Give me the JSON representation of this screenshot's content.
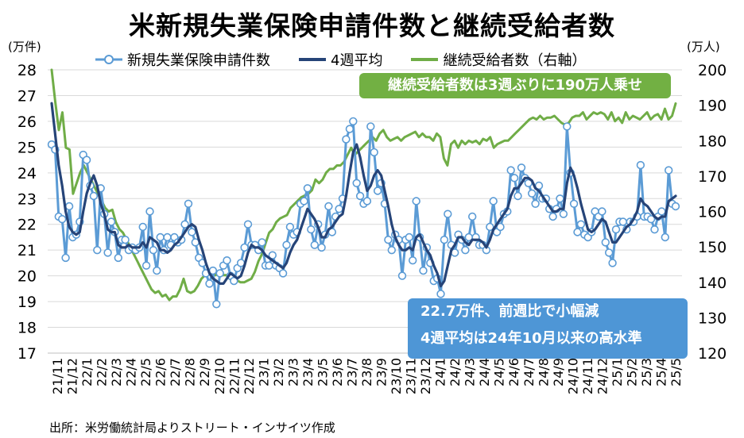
{
  "title": "米新規失業保険申請件数と継続受給者数",
  "left_unit": "(万件)",
  "right_unit": "(万人)",
  "source": "出所：米労働統計局よりストリート・インサイツ作成",
  "callouts": {
    "green": "継続受給者数は3週ぶりに190万人乗せ",
    "blue_line1": "22.7万件、前週比で小幅減",
    "blue_line2": "4週平均は24年10月以来の高水準"
  },
  "colors": {
    "weekly": "#5b9bd5",
    "avg4": "#264478",
    "continuing": "#70ad47",
    "callout_green": "#72b043",
    "callout_blue": "#4e96d6"
  },
  "chart_data": {
    "type": "line",
    "title": "米新規失業保険申請件数と継続受給者数",
    "x_tick_labels": [
      "21/11",
      "21/12",
      "22/1",
      "22/2",
      "22/3",
      "22/4",
      "22/5",
      "22/6",
      "22/7",
      "22/8",
      "22/9",
      "22/10",
      "22/11",
      "22/12",
      "23/1",
      "23/2",
      "23/3",
      "23/4",
      "23/5",
      "23/6",
      "23/7",
      "23/8",
      "23/9",
      "23/10",
      "23/11",
      "23/12",
      "24/1",
      "24/2",
      "24/3",
      "24/4",
      "24/5",
      "24/6",
      "24/7",
      "24/8",
      "24/9",
      "24/10",
      "24/11",
      "24/12",
      "25/1",
      "25/2",
      "25/3",
      "25/4",
      "25/5"
    ],
    "y_left": {
      "label": "(万件)",
      "range": [
        17,
        28
      ],
      "ticks": [
        17,
        18,
        19,
        20,
        21,
        22,
        23,
        24,
        25,
        26,
        27,
        28
      ]
    },
    "y_right": {
      "label": "(万人)",
      "range": [
        120,
        200
      ],
      "ticks": [
        120,
        130,
        140,
        150,
        160,
        170,
        180,
        190,
        200
      ]
    },
    "grid": true,
    "legend_position": "top",
    "series": [
      {
        "name": "新規失業保険申請件数",
        "axis": "left",
        "style": "line-markers",
        "values": [
          25.1,
          24.9,
          22.3,
          22.2,
          20.7,
          22.7,
          21.5,
          21.6,
          22.1,
          24.7,
          24.5,
          23.5,
          23.1,
          21.0,
          23.4,
          22.4,
          20.9,
          22.1,
          21.7,
          20.7,
          21.4,
          21.4,
          21.0,
          21.1,
          21.0,
          21.1,
          21.9,
          20.4,
          22.5,
          21.0,
          20.2,
          21.5,
          21.0,
          21.5,
          21.2,
          21.5,
          21.3,
          21.4,
          22.0,
          22.8,
          21.7,
          21.3,
          20.7,
          20.5,
          20.1,
          19.7,
          20.2,
          18.9,
          20.1,
          20.4,
          20.6,
          20.0,
          19.8,
          20.3,
          20.5,
          21.1,
          22.0,
          21.2,
          21.2,
          21.0,
          21.3,
          20.4,
          20.4,
          20.8,
          20.4,
          20.3,
          20.1,
          21.2,
          21.9,
          21.6,
          21.7,
          22.8,
          22.9,
          23.4,
          21.8,
          21.2,
          22.0,
          21.1,
          21.6,
          22.7,
          21.7,
          22.3,
          22.6,
          23.0,
          25.3,
          25.7,
          26.0,
          23.6,
          23.1,
          22.8,
          22.9,
          25.8,
          24.8,
          23.3,
          23.6,
          22.8,
          21.4,
          21.0,
          21.6,
          21.4,
          20.0,
          21.4,
          21.5,
          20.6,
          22.9,
          21.5,
          20.2,
          21.1,
          20.5,
          19.8,
          19.9,
          19.3,
          21.4,
          22.4,
          21.2,
          20.9,
          21.6,
          21.4,
          21.0,
          21.5,
          22.3,
          21.5,
          21.2,
          21.2,
          21.0,
          21.9,
          22.9,
          21.7,
          21.9,
          22.4,
          22.5,
          24.1,
          23.8,
          23.1,
          24.2,
          23.8,
          23.6,
          23.2,
          22.8,
          23.5,
          23.0,
          23.0,
          22.6,
          22.3,
          22.6,
          23.0,
          22.4,
          25.8,
          24.0,
          22.8,
          21.7,
          22.0,
          21.6,
          21.5,
          21.7,
          22.5,
          22.3,
          22.5,
          21.3,
          20.9,
          20.5,
          21.8,
          22.1,
          22.1,
          21.8,
          22.1,
          22.1,
          22.3,
          24.3,
          22.3,
          22.3,
          22.2,
          21.8,
          22.3,
          22.5,
          21.5,
          24.1,
          22.8,
          22.7
        ]
      },
      {
        "name": "4週平均",
        "axis": "left",
        "style": "line",
        "values": [
          26.7,
          25.5,
          24.3,
          23.5,
          22.5,
          21.9,
          21.7,
          21.6,
          21.7,
          22.5,
          23.2,
          23.6,
          23.9,
          23.5,
          22.8,
          22.4,
          21.8,
          21.7,
          21.7,
          21.2,
          21.1,
          21.1,
          21.2,
          21.1,
          21.1,
          21.1,
          21.3,
          21.1,
          21.5,
          21.4,
          21.3,
          21.0,
          21.0,
          20.9,
          21.0,
          21.2,
          21.3,
          21.5,
          21.7,
          21.9,
          22.0,
          21.9,
          21.4,
          21.0,
          20.5,
          20.1,
          19.9,
          19.8,
          19.7,
          19.7,
          19.9,
          20.1,
          20.0,
          19.9,
          20.0,
          20.4,
          20.9,
          21.2,
          21.1,
          21.1,
          21.0,
          20.8,
          20.7,
          20.6,
          20.5,
          20.4,
          20.3,
          20.5,
          20.9,
          21.2,
          21.4,
          21.8,
          22.2,
          22.6,
          22.4,
          22.2,
          21.9,
          21.5,
          21.5,
          21.8,
          21.9,
          22.1,
          22.3,
          22.4,
          23.1,
          24.0,
          24.8,
          25.1,
          24.6,
          23.9,
          23.3,
          23.5,
          23.9,
          24.1,
          23.9,
          23.3,
          22.7,
          22.0,
          21.5,
          21.2,
          21.0,
          21.0,
          21.1,
          21.0,
          21.5,
          21.6,
          21.3,
          21.0,
          20.8,
          20.4,
          20.1,
          19.6,
          19.8,
          20.4,
          21.0,
          21.2,
          21.5,
          21.5,
          21.3,
          21.2,
          21.4,
          21.4,
          21.4,
          21.3,
          21.1,
          21.4,
          21.8,
          22.0,
          22.2,
          22.4,
          22.6,
          23.1,
          23.4,
          23.4,
          23.6,
          23.8,
          23.8,
          23.7,
          23.4,
          23.3,
          23.1,
          22.9,
          22.7,
          22.5,
          22.5,
          22.6,
          22.6,
          23.6,
          24.2,
          23.9,
          23.4,
          22.8,
          22.3,
          21.8,
          21.7,
          21.8,
          22.0,
          22.2,
          22.1,
          21.7,
          21.3,
          21.3,
          21.5,
          21.7,
          21.9,
          22.0,
          22.2,
          22.5,
          23.0,
          22.8,
          22.7,
          22.5,
          22.3,
          22.2,
          22.3,
          22.3,
          22.9,
          23.0,
          23.1
        ]
      },
      {
        "name": "継続受給者数（右軸）",
        "axis": "right",
        "style": "line",
        "values": [
          200.0,
          191.0,
          183.0,
          188.0,
          178.0,
          177.5,
          165.0,
          168.0,
          171.0,
          173.0,
          171.0,
          169.0,
          167.0,
          165.0,
          163.0,
          161.0,
          160.0,
          160.5,
          157.0,
          155.0,
          154.0,
          152.0,
          150.0,
          148.0,
          146.0,
          144.0,
          142.0,
          140.0,
          138.0,
          137.0,
          137.5,
          136.0,
          136.5,
          135.0,
          136.0,
          136.0,
          138.0,
          141.0,
          137.5,
          137.0,
          137.5,
          139.0,
          141.0,
          142.0,
          143.0,
          142.5,
          142.0,
          143.0,
          142.0,
          142.0,
          141.0,
          140.0,
          140.5,
          140.0,
          140.0,
          140.5,
          141.0,
          143.0,
          146.0,
          148.0,
          151.0,
          154.0,
          155.0,
          157.0,
          158.0,
          158.5,
          159.0,
          161.0,
          162.0,
          163.0,
          164.0,
          164.5,
          165.0,
          166.0,
          169.0,
          168.0,
          169.0,
          171.0,
          172.0,
          172.0,
          173.0,
          173.0,
          174.0,
          176.0,
          178.0,
          176.0,
          177.0,
          178.0,
          179.0,
          180.0,
          181.0,
          180.0,
          182.0,
          183.0,
          181.0,
          180.0,
          180.5,
          181.0,
          180.0,
          181.0,
          181.5,
          182.0,
          182.5,
          181.0,
          182.0,
          181.0,
          181.0,
          180.0,
          182.0,
          181.0,
          175.0,
          173.0,
          179.0,
          180.0,
          178.0,
          180.0,
          179.0,
          180.0,
          179.5,
          180.0,
          179.0,
          180.5,
          180.0,
          181.0,
          178.0,
          179.0,
          179.5,
          180.0,
          180.0,
          181.0,
          182.0,
          183.0,
          184.0,
          185.0,
          186.0,
          186.5,
          186.0,
          187.0,
          186.0,
          186.5,
          186.5,
          187.0,
          186.0,
          185.0,
          184.5,
          185.0,
          186.5,
          187.0,
          187.0,
          188.0,
          186.0,
          187.0,
          188.0,
          187.5,
          188.0,
          187.5,
          186.0,
          188.0,
          185.5,
          186.5,
          185.0,
          188.0,
          186.0,
          187.0,
          186.5,
          186.0,
          187.0,
          188.0,
          186.0,
          187.0,
          187.5,
          186.0,
          189.0,
          186.0,
          187.0,
          190.5
        ]
      }
    ]
  }
}
